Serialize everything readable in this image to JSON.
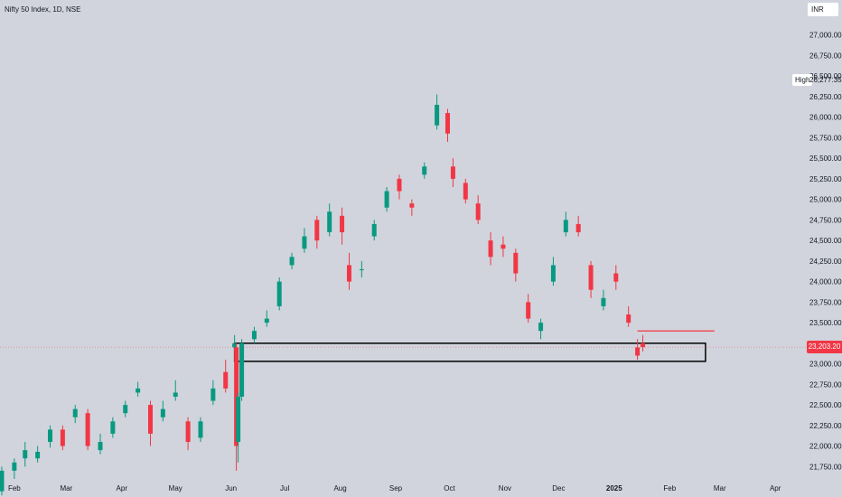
{
  "header": {
    "title": "Nifty 50 Index, 1D, NSE",
    "currency": "INR"
  },
  "price_scale": {
    "ticks": [
      {
        "value": 27000,
        "label": "27,000.00"
      },
      {
        "value": 26750,
        "label": "26,750.00"
      },
      {
        "value": 26500,
        "label": "26,500.00"
      },
      {
        "value": 26250,
        "label": "26,250.00"
      },
      {
        "value": 26000,
        "label": "26,000.00"
      },
      {
        "value": 25750,
        "label": "25,750.00"
      },
      {
        "value": 25500,
        "label": "25,500.00"
      },
      {
        "value": 25250,
        "label": "25,250.00"
      },
      {
        "value": 25000,
        "label": "25,000.00"
      },
      {
        "value": 24750,
        "label": "24,750.00"
      },
      {
        "value": 24500,
        "label": "24,500.00"
      },
      {
        "value": 24250,
        "label": "24,250.00"
      },
      {
        "value": 24000,
        "label": "24,000.00"
      },
      {
        "value": 23750,
        "label": "23,750.00"
      },
      {
        "value": 23500,
        "label": "23,500.00"
      },
      {
        "value": 23250,
        "label": "23,250.00"
      },
      {
        "value": 23000,
        "label": "23,000.00"
      },
      {
        "value": 22750,
        "label": "22,750.00"
      },
      {
        "value": 22500,
        "label": "22,500.00"
      },
      {
        "value": 22250,
        "label": "22,250.00"
      },
      {
        "value": 22000,
        "label": "22,000.00"
      },
      {
        "value": 21750,
        "label": "21,750.00"
      }
    ],
    "high_label": "High",
    "high_value": "26,277.35",
    "current_value": "23,203.20"
  },
  "time_scale": {
    "ticks": [
      {
        "label": "Feb",
        "bold": false
      },
      {
        "label": "Mar",
        "bold": false
      },
      {
        "label": "Apr",
        "bold": false
      },
      {
        "label": "May",
        "bold": false
      },
      {
        "label": "Jun",
        "bold": false
      },
      {
        "label": "Jul",
        "bold": false
      },
      {
        "label": "Aug",
        "bold": false
      },
      {
        "label": "Sep",
        "bold": false
      },
      {
        "label": "Oct",
        "bold": false
      },
      {
        "label": "Nov",
        "bold": false
      },
      {
        "label": "Dec",
        "bold": false
      },
      {
        "label": "2025",
        "bold": true
      },
      {
        "label": "Feb",
        "bold": false
      },
      {
        "label": "Mar",
        "bold": false
      },
      {
        "label": "Apr",
        "bold": false
      }
    ]
  },
  "colors": {
    "background": "#d1d4dc",
    "up": "#089981",
    "down": "#f23645",
    "zone_border": "#000000",
    "zone_fill": "#d1d4dc"
  },
  "chart_data": {
    "type": "candlestick",
    "ylim": [
      21600,
      27150
    ],
    "grid": false,
    "x_domain": [
      "2024-01-24",
      "2025-04-12"
    ],
    "candles": [
      [
        "2024-01-25",
        21450,
        21750,
        21400,
        21700
      ],
      [
        "2024-02-01",
        21700,
        21850,
        21600,
        21800
      ],
      [
        "2024-02-07",
        21850,
        22050,
        21750,
        21950
      ],
      [
        "2024-02-14",
        21850,
        22000,
        21800,
        21930
      ],
      [
        "2024-02-21",
        22050,
        22250,
        21980,
        22200
      ],
      [
        "2024-02-28",
        22200,
        22250,
        21950,
        22000
      ],
      [
        "2024-03-06",
        22350,
        22500,
        22280,
        22450
      ],
      [
        "2024-03-13",
        22400,
        22450,
        21950,
        22000
      ],
      [
        "2024-03-20",
        21950,
        22150,
        21900,
        22050
      ],
      [
        "2024-03-27",
        22150,
        22350,
        22100,
        22300
      ],
      [
        "2024-04-03",
        22400,
        22550,
        22350,
        22500
      ],
      [
        "2024-04-10",
        22650,
        22780,
        22600,
        22700
      ],
      [
        "2024-04-17",
        22500,
        22550,
        22000,
        22150
      ],
      [
        "2024-04-24",
        22350,
        22550,
        22300,
        22450
      ],
      [
        "2024-05-01",
        22600,
        22800,
        22550,
        22650
      ],
      [
        "2024-05-08",
        22300,
        22350,
        21950,
        22050
      ],
      [
        "2024-05-15",
        22100,
        22350,
        22050,
        22300
      ],
      [
        "2024-05-22",
        22550,
        22800,
        22500,
        22700
      ],
      [
        "2024-05-29",
        22900,
        23050,
        22650,
        22700
      ],
      [
        "2024-06-03",
        23200,
        23350,
        23150,
        23250
      ],
      [
        "2024-06-04",
        23200,
        23250,
        21700,
        22000
      ],
      [
        "2024-06-05",
        22050,
        22650,
        21800,
        22600
      ],
      [
        "2024-06-07",
        22600,
        23300,
        22550,
        23250
      ],
      [
        "2024-06-14",
        23300,
        23450,
        23250,
        23400
      ],
      [
        "2024-06-21",
        23500,
        23650,
        23450,
        23550
      ],
      [
        "2024-06-28",
        23700,
        24050,
        23650,
        24000
      ],
      [
        "2024-07-05",
        24200,
        24350,
        24150,
        24300
      ],
      [
        "2024-07-12",
        24400,
        24650,
        24350,
        24550
      ],
      [
        "2024-07-19",
        24750,
        24800,
        24400,
        24500
      ],
      [
        "2024-07-26",
        24600,
        24950,
        24550,
        24850
      ],
      [
        "2024-08-02",
        24800,
        24900,
        24450,
        24600
      ],
      [
        "2024-08-06",
        24200,
        24350,
        23900,
        24000
      ],
      [
        "2024-08-13",
        24150,
        24250,
        24050,
        24150
      ],
      [
        "2024-08-20",
        24550,
        24750,
        24500,
        24700
      ],
      [
        "2024-08-27",
        24900,
        25150,
        24850,
        25100
      ],
      [
        "2024-09-03",
        25250,
        25300,
        25000,
        25100
      ],
      [
        "2024-09-10",
        24950,
        25000,
        24800,
        24900
      ],
      [
        "2024-09-17",
        25300,
        25450,
        25250,
        25400
      ],
      [
        "2024-09-24",
        25900,
        26277,
        25850,
        26150
      ],
      [
        "2024-09-30",
        26050,
        26100,
        25700,
        25800
      ],
      [
        "2024-10-03",
        25400,
        25500,
        25150,
        25250
      ],
      [
        "2024-10-10",
        25200,
        25250,
        24950,
        25000
      ],
      [
        "2024-10-17",
        24950,
        25050,
        24700,
        24750
      ],
      [
        "2024-10-24",
        24500,
        24600,
        24200,
        24300
      ],
      [
        "2024-10-31",
        24450,
        24550,
        24300,
        24400
      ],
      [
        "2024-11-07",
        24350,
        24400,
        24000,
        24100
      ],
      [
        "2024-11-14",
        23750,
        23850,
        23500,
        23550
      ],
      [
        "2024-11-21",
        23400,
        23550,
        23300,
        23500
      ],
      [
        "2024-11-28",
        24000,
        24300,
        23950,
        24200
      ],
      [
        "2024-12-05",
        24600,
        24850,
        24550,
        24750
      ],
      [
        "2024-12-12",
        24700,
        24800,
        24550,
        24600
      ],
      [
        "2024-12-19",
        24200,
        24250,
        23800,
        23900
      ],
      [
        "2024-12-26",
        23700,
        23900,
        23650,
        23800
      ],
      [
        "2025-01-02",
        24100,
        24200,
        23900,
        24000
      ],
      [
        "2025-01-09",
        23600,
        23700,
        23450,
        23500
      ],
      [
        "2025-01-14",
        23200,
        23300,
        23050,
        23100
      ],
      [
        "2025-01-17",
        23250,
        23350,
        23150,
        23203
      ]
    ],
    "support_zone": {
      "from": "2024-06-03",
      "to": "2025-02-21",
      "low": 23030,
      "high": 23250
    },
    "resistance_line": {
      "from": "2025-01-14",
      "to": "2025-02-26",
      "value": 23400
    },
    "current_price": 23203.2
  }
}
